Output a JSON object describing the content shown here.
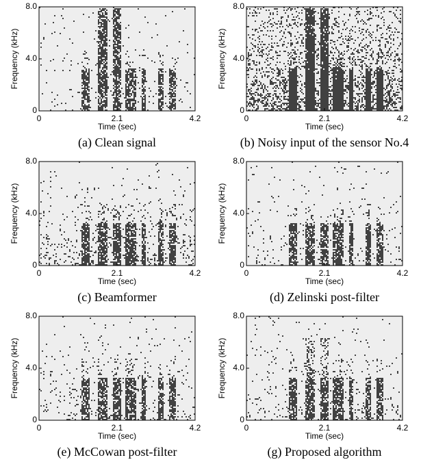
{
  "chart_data": [
    {
      "type": "spectrogram",
      "caption": "(a) Clean signal",
      "xlabel": "Time (sec)",
      "ylabel": "Frequency (kHz)",
      "xlim": [
        0,
        4.2
      ],
      "ylim": [
        0,
        8
      ],
      "xticks": [
        0,
        2.1,
        4.2
      ],
      "yticks": [
        0,
        {
          "value": 4,
          "label": "4.0"
        },
        {
          "value": 8,
          "label": "8.0"
        }
      ]
    },
    {
      "type": "spectrogram",
      "caption": "(b) Noisy input of the sensor No.4",
      "xlabel": "Time (sec)",
      "ylabel": "Frequency (kHz)",
      "xlim": [
        0,
        4.2
      ],
      "ylim": [
        0,
        8
      ],
      "xticks": [
        0,
        2.1,
        4.2
      ],
      "yticks": [
        0,
        {
          "value": 4,
          "label": "4.0"
        },
        {
          "value": 8,
          "label": "8.0"
        }
      ]
    },
    {
      "type": "spectrogram",
      "caption": "(c) Beamformer",
      "xlabel": "Time (sec)",
      "ylabel": "Frequency (kHz)",
      "xlim": [
        0,
        4.2
      ],
      "ylim": [
        0,
        8
      ],
      "xticks": [
        0,
        2.1,
        4.2
      ],
      "yticks": [
        0,
        {
          "value": 4,
          "label": "4.0"
        },
        {
          "value": 8,
          "label": "8.0"
        }
      ]
    },
    {
      "type": "spectrogram",
      "caption": "(d) Zelinski post-filter",
      "xlabel": "Time (sec)",
      "ylabel": "Frequency (kHz)",
      "xlim": [
        0,
        4.2
      ],
      "ylim": [
        0,
        8
      ],
      "xticks": [
        0,
        2.1,
        4.2
      ],
      "yticks": [
        0,
        {
          "value": 4,
          "label": "4.0"
        },
        {
          "value": 8,
          "label": "8.0"
        }
      ]
    },
    {
      "type": "spectrogram",
      "caption": "(e) McCowan post-filter",
      "xlabel": "Time (sec)",
      "ylabel": "Frequency (kHz)",
      "xlim": [
        0,
        4.2
      ],
      "ylim": [
        0,
        8
      ],
      "xticks": [
        0,
        2.1,
        4.2
      ],
      "yticks": [
        0,
        {
          "value": 4,
          "label": "4.0"
        },
        {
          "value": 8,
          "label": "8.0"
        }
      ]
    },
    {
      "type": "spectrogram",
      "caption": "(g) Proposed algorithm",
      "xlabel": "Time (sec)",
      "ylabel": "Frequency (kHz)",
      "xlim": [
        0,
        4.2
      ],
      "ylim": [
        0,
        8
      ],
      "xticks": [
        0,
        2.1,
        4.2
      ],
      "yticks": [
        0,
        {
          "value": 4,
          "label": "4.0"
        },
        {
          "value": 8,
          "label": "8.0"
        }
      ]
    }
  ]
}
